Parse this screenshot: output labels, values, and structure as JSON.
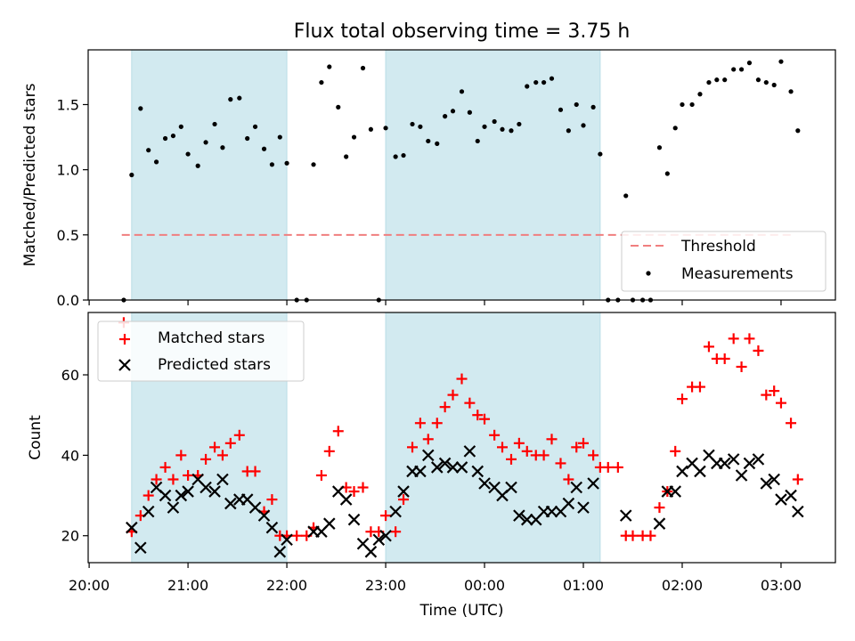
{
  "chart_data": [
    {
      "type": "scatter",
      "title": "Flux total observing time = 3.75 h",
      "ylabel": "Matched/Predicted stars",
      "xlabel": "",
      "x_unit": "hours since 20:00 UTC",
      "xlim": [
        19.99,
        27.55
      ],
      "ylim": [
        0.0,
        1.92
      ],
      "yticks": [
        0.0,
        0.5,
        1.0,
        1.5
      ],
      "yticklabels": [
        "0.0",
        "0.5",
        "1.0",
        "1.5"
      ],
      "shaded_intervals": [
        [
          20.43,
          22.0
        ],
        [
          23.0,
          25.17
        ]
      ],
      "shade_color": "#d2eaf0",
      "threshold": {
        "name": "Threshold",
        "value": 0.5,
        "x_range": [
          20.33,
          27.13
        ],
        "color": "#f07f7f"
      },
      "legend": {
        "position": "lower right",
        "entries": [
          "Threshold",
          "Measurements"
        ]
      },
      "series": [
        {
          "name": "Measurements",
          "color": "#000000",
          "points": [
            [
              20.35,
              0.0
            ],
            [
              20.43,
              0.96
            ],
            [
              20.52,
              1.47
            ],
            [
              20.6,
              1.15
            ],
            [
              20.68,
              1.06
            ],
            [
              20.77,
              1.24
            ],
            [
              20.85,
              1.26
            ],
            [
              20.93,
              1.33
            ],
            [
              21.0,
              1.12
            ],
            [
              21.1,
              1.03
            ],
            [
              21.18,
              1.21
            ],
            [
              21.27,
              1.35
            ],
            [
              21.35,
              1.17
            ],
            [
              21.43,
              1.54
            ],
            [
              21.52,
              1.55
            ],
            [
              21.6,
              1.24
            ],
            [
              21.68,
              1.33
            ],
            [
              21.77,
              1.16
            ],
            [
              21.85,
              1.04
            ],
            [
              21.93,
              1.25
            ],
            [
              22.0,
              1.05
            ],
            [
              22.1,
              0.0
            ],
            [
              22.2,
              0.0
            ],
            [
              22.27,
              1.04
            ],
            [
              22.35,
              1.67
            ],
            [
              22.43,
              1.79
            ],
            [
              22.52,
              1.48
            ],
            [
              22.6,
              1.1
            ],
            [
              22.68,
              1.25
            ],
            [
              22.77,
              1.78
            ],
            [
              22.85,
              1.31
            ],
            [
              22.93,
              0.0
            ],
            [
              23.0,
              1.32
            ],
            [
              23.1,
              1.1
            ],
            [
              23.18,
              1.11
            ],
            [
              23.27,
              1.35
            ],
            [
              23.35,
              1.33
            ],
            [
              23.43,
              1.22
            ],
            [
              23.52,
              1.2
            ],
            [
              23.6,
              1.41
            ],
            [
              23.68,
              1.45
            ],
            [
              23.77,
              1.6
            ],
            [
              23.85,
              1.44
            ],
            [
              23.93,
              1.22
            ],
            [
              24.0,
              1.33
            ],
            [
              24.1,
              1.37
            ],
            [
              24.18,
              1.31
            ],
            [
              24.27,
              1.3
            ],
            [
              24.35,
              1.35
            ],
            [
              24.43,
              1.64
            ],
            [
              24.52,
              1.67
            ],
            [
              24.6,
              1.67
            ],
            [
              24.68,
              1.7
            ],
            [
              24.77,
              1.46
            ],
            [
              24.85,
              1.3
            ],
            [
              24.93,
              1.5
            ],
            [
              25.0,
              1.34
            ],
            [
              25.1,
              1.48
            ],
            [
              25.17,
              1.12
            ],
            [
              25.25,
              0.0
            ],
            [
              25.35,
              0.0
            ],
            [
              25.43,
              0.8
            ],
            [
              25.5,
              0.0
            ],
            [
              25.6,
              0.0
            ],
            [
              25.68,
              0.0
            ],
            [
              25.77,
              1.17
            ],
            [
              25.85,
              0.97
            ],
            [
              25.93,
              1.32
            ],
            [
              26.0,
              1.5
            ],
            [
              26.1,
              1.5
            ],
            [
              26.18,
              1.58
            ],
            [
              26.27,
              1.67
            ],
            [
              26.35,
              1.69
            ],
            [
              26.43,
              1.69
            ],
            [
              26.52,
              1.77
            ],
            [
              26.6,
              1.77
            ],
            [
              26.68,
              1.82
            ],
            [
              26.77,
              1.69
            ],
            [
              26.85,
              1.67
            ],
            [
              26.93,
              1.65
            ],
            [
              27.0,
              1.83
            ],
            [
              27.1,
              1.6
            ],
            [
              27.17,
              1.3
            ]
          ]
        }
      ]
    },
    {
      "type": "scatter",
      "title": "",
      "xlabel": "Time (UTC)",
      "ylabel": "Count",
      "x_unit": "hours since 20:00 UTC",
      "xlim": [
        19.99,
        27.55
      ],
      "ylim": [
        13.3,
        75.5
      ],
      "xticks": [
        20.0,
        21.0,
        22.0,
        23.0,
        24.0,
        25.0,
        26.0,
        27.0
      ],
      "xticklabels": [
        "20:00",
        "21:00",
        "22:00",
        "23:00",
        "00:00",
        "01:00",
        "02:00",
        "03:00"
      ],
      "yticks": [
        20,
        40,
        60
      ],
      "yticklabels": [
        "20",
        "40",
        "60"
      ],
      "shaded_intervals": [
        [
          20.43,
          22.0
        ],
        [
          23.0,
          25.17
        ]
      ],
      "shade_color": "#d2eaf0",
      "legend": {
        "position": "upper left",
        "entries": [
          "Matched stars",
          "Predicted stars"
        ]
      },
      "series": [
        {
          "name": "Matched stars",
          "marker": "plus",
          "color": "#ff0000",
          "points": [
            [
              20.35,
              73
            ],
            [
              20.43,
              21
            ],
            [
              20.52,
              25
            ],
            [
              20.6,
              30
            ],
            [
              20.68,
              34
            ],
            [
              20.77,
              37
            ],
            [
              20.85,
              34
            ],
            [
              20.93,
              40
            ],
            [
              21.0,
              35
            ],
            [
              21.1,
              35
            ],
            [
              21.18,
              39
            ],
            [
              21.27,
              42
            ],
            [
              21.35,
              40
            ],
            [
              21.43,
              43
            ],
            [
              21.52,
              45
            ],
            [
              21.6,
              36
            ],
            [
              21.68,
              36
            ],
            [
              21.77,
              26
            ],
            [
              21.85,
              29
            ],
            [
              21.93,
              20
            ],
            [
              22.0,
              20
            ],
            [
              22.1,
              20
            ],
            [
              22.2,
              20
            ],
            [
              22.27,
              22
            ],
            [
              22.35,
              35
            ],
            [
              22.43,
              41
            ],
            [
              22.52,
              46
            ],
            [
              22.6,
              32
            ],
            [
              22.68,
              31
            ],
            [
              22.77,
              32
            ],
            [
              22.85,
              21
            ],
            [
              22.93,
              21
            ],
            [
              23.0,
              25
            ],
            [
              23.1,
              21
            ],
            [
              23.18,
              29
            ],
            [
              23.27,
              42
            ],
            [
              23.35,
              48
            ],
            [
              23.43,
              44
            ],
            [
              23.52,
              48
            ],
            [
              23.6,
              52
            ],
            [
              23.68,
              55
            ],
            [
              23.77,
              59
            ],
            [
              23.85,
              53
            ],
            [
              23.93,
              50
            ],
            [
              24.0,
              49
            ],
            [
              24.1,
              45
            ],
            [
              24.18,
              42
            ],
            [
              24.27,
              39
            ],
            [
              24.35,
              43
            ],
            [
              24.43,
              41
            ],
            [
              24.52,
              40
            ],
            [
              24.6,
              40
            ],
            [
              24.68,
              44
            ],
            [
              24.77,
              38
            ],
            [
              24.85,
              34
            ],
            [
              24.93,
              42
            ],
            [
              25.0,
              43
            ],
            [
              25.1,
              40
            ],
            [
              25.17,
              37
            ],
            [
              25.25,
              37
            ],
            [
              25.35,
              37
            ],
            [
              25.43,
              20
            ],
            [
              25.5,
              20
            ],
            [
              25.6,
              20
            ],
            [
              25.68,
              20
            ],
            [
              25.77,
              27
            ],
            [
              25.85,
              31
            ],
            [
              25.93,
              41
            ],
            [
              26.0,
              54
            ],
            [
              26.1,
              57
            ],
            [
              26.18,
              57
            ],
            [
              26.27,
              67
            ],
            [
              26.35,
              64
            ],
            [
              26.43,
              64
            ],
            [
              26.52,
              69
            ],
            [
              26.6,
              62
            ],
            [
              26.68,
              69
            ],
            [
              26.77,
              66
            ],
            [
              26.85,
              55
            ],
            [
              26.93,
              56
            ],
            [
              27.0,
              53
            ],
            [
              27.1,
              48
            ],
            [
              27.17,
              34
            ]
          ]
        },
        {
          "name": "Predicted stars",
          "marker": "x",
          "color": "#000000",
          "points": [
            [
              20.43,
              22
            ],
            [
              20.52,
              17
            ],
            [
              20.6,
              26
            ],
            [
              20.68,
              32
            ],
            [
              20.77,
              30
            ],
            [
              20.85,
              27
            ],
            [
              20.93,
              30
            ],
            [
              21.0,
              31
            ],
            [
              21.1,
              34
            ],
            [
              21.18,
              32
            ],
            [
              21.27,
              31
            ],
            [
              21.35,
              34
            ],
            [
              21.43,
              28
            ],
            [
              21.52,
              29
            ],
            [
              21.6,
              29
            ],
            [
              21.68,
              27
            ],
            [
              21.77,
              25
            ],
            [
              21.85,
              22
            ],
            [
              21.93,
              16
            ],
            [
              22.0,
              19
            ],
            [
              22.27,
              21
            ],
            [
              22.35,
              21
            ],
            [
              22.43,
              23
            ],
            [
              22.52,
              31
            ],
            [
              22.6,
              29
            ],
            [
              22.68,
              24
            ],
            [
              22.77,
              18
            ],
            [
              22.85,
              16
            ],
            [
              22.93,
              19
            ],
            [
              23.0,
              20
            ],
            [
              23.1,
              26
            ],
            [
              23.18,
              31
            ],
            [
              23.27,
              36
            ],
            [
              23.35,
              36
            ],
            [
              23.43,
              40
            ],
            [
              23.52,
              37
            ],
            [
              23.6,
              38
            ],
            [
              23.68,
              37
            ],
            [
              23.77,
              37
            ],
            [
              23.85,
              41
            ],
            [
              23.93,
              36
            ],
            [
              24.0,
              33
            ],
            [
              24.1,
              32
            ],
            [
              24.18,
              30
            ],
            [
              24.27,
              32
            ],
            [
              24.35,
              25
            ],
            [
              24.43,
              24
            ],
            [
              24.52,
              24
            ],
            [
              24.6,
              26
            ],
            [
              24.68,
              26
            ],
            [
              24.77,
              26
            ],
            [
              24.85,
              28
            ],
            [
              24.93,
              32
            ],
            [
              25.0,
              27
            ],
            [
              25.1,
              33
            ],
            [
              25.43,
              25
            ],
            [
              25.77,
              23
            ],
            [
              25.85,
              31
            ],
            [
              25.93,
              31
            ],
            [
              26.0,
              36
            ],
            [
              26.1,
              38
            ],
            [
              26.18,
              36
            ],
            [
              26.27,
              40
            ],
            [
              26.35,
              38
            ],
            [
              26.43,
              38
            ],
            [
              26.52,
              39
            ],
            [
              26.6,
              35
            ],
            [
              26.68,
              38
            ],
            [
              26.77,
              39
            ],
            [
              26.85,
              33
            ],
            [
              26.93,
              34
            ],
            [
              27.0,
              29
            ],
            [
              27.1,
              30
            ],
            [
              27.17,
              26
            ]
          ]
        }
      ]
    }
  ]
}
